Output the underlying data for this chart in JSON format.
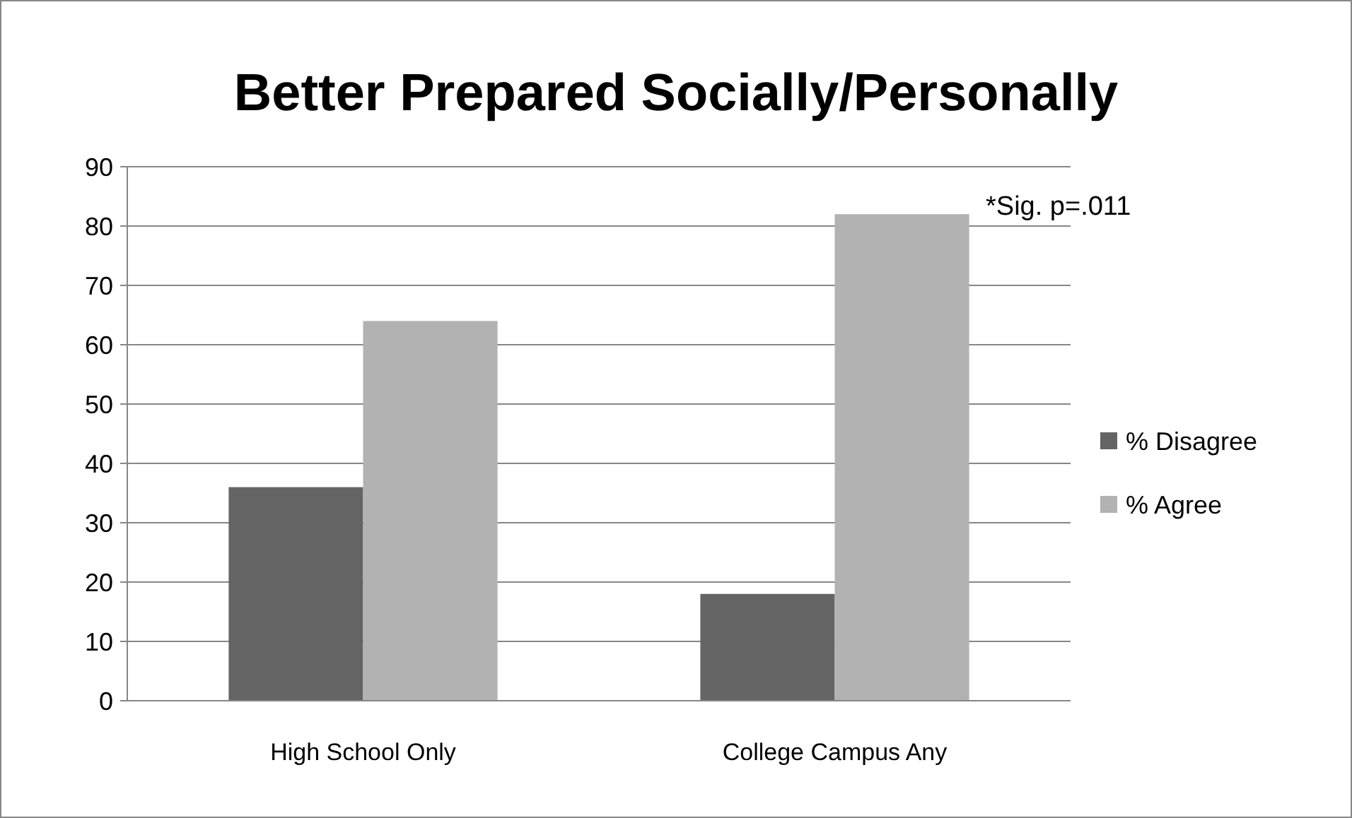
{
  "chart_data": {
    "type": "bar",
    "title": "Better Prepared Socially/Personally",
    "categories": [
      "High School Only",
      "College Campus Any"
    ],
    "series": [
      {
        "name": "% Disagree",
        "color": "#646464",
        "values": [
          36,
          18
        ]
      },
      {
        "name": "% Agree",
        "color": "#b2b2b2",
        "values": [
          64,
          82
        ]
      }
    ],
    "ylim": [
      0,
      90
    ],
    "yticks": [
      0,
      10,
      20,
      30,
      40,
      50,
      60,
      70,
      80,
      90
    ],
    "grid": "y",
    "legend": "right",
    "annotations": [
      "*Sig. p=.011"
    ]
  }
}
